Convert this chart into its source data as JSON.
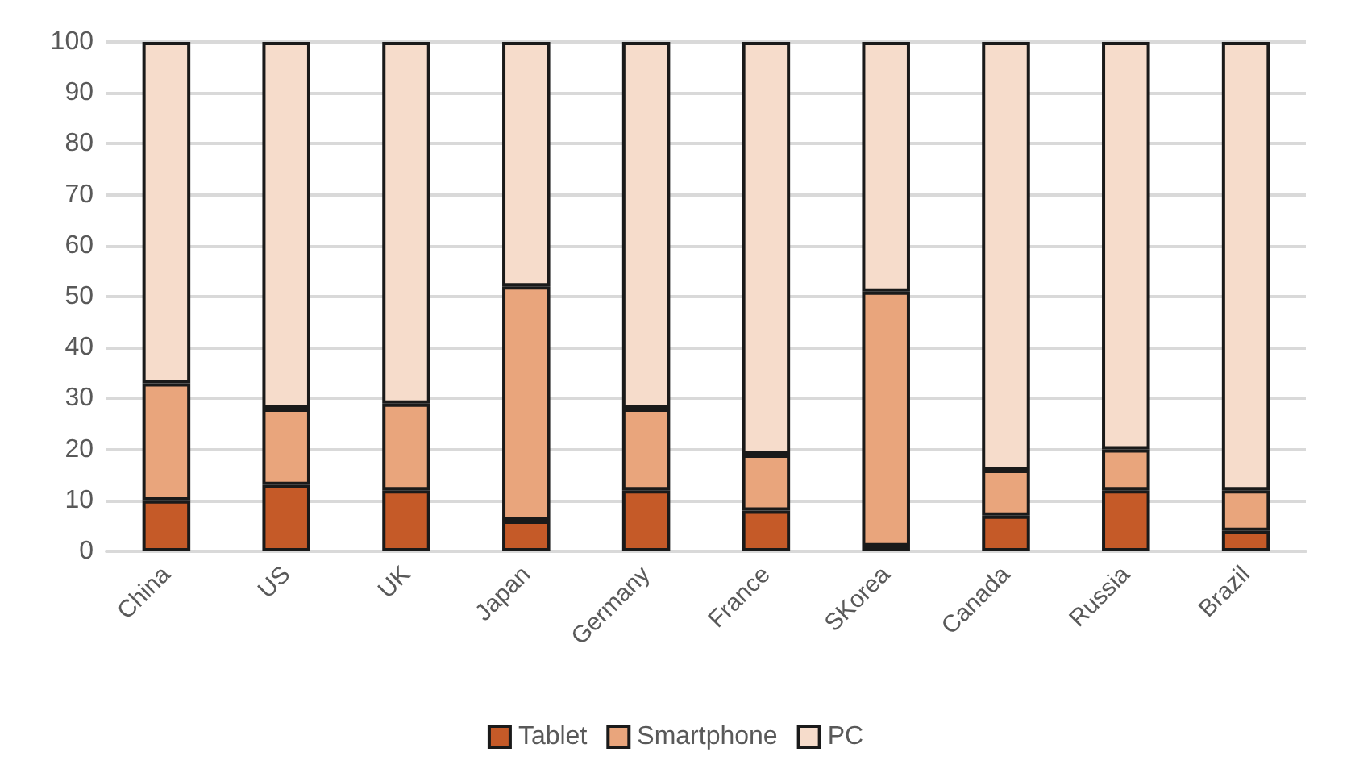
{
  "chart_data": {
    "type": "bar",
    "stacked": true,
    "categories": [
      "China",
      "US",
      "UK",
      "Japan",
      "Germany",
      "France",
      "SKorea",
      "Canada",
      "Russia",
      "Brazil"
    ],
    "series": [
      {
        "name": "Tablet",
        "color": "#c55a28",
        "values": [
          10,
          13,
          12,
          6,
          12,
          8,
          1,
          7,
          12,
          4
        ]
      },
      {
        "name": "Smartphone",
        "color": "#e9a57c",
        "values": [
          23,
          15,
          17,
          46,
          16,
          11,
          50,
          9,
          8,
          8
        ]
      },
      {
        "name": "PC",
        "color": "#f6dccb",
        "values": [
          67,
          72,
          71,
          48,
          72,
          81,
          49,
          84,
          80,
          88
        ]
      }
    ],
    "ylim": [
      0,
      100
    ],
    "yticks": [
      0,
      10,
      20,
      30,
      40,
      50,
      60,
      70,
      80,
      90,
      100
    ],
    "grid": "y",
    "legend": "bottom"
  }
}
